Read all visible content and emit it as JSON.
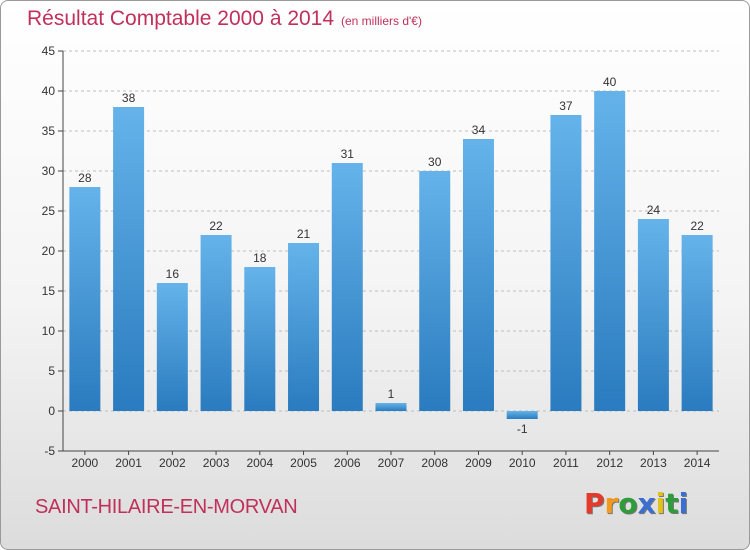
{
  "header": {
    "title": "Résultat Comptable 2000 à 2014",
    "subtitle": "(en milliers d'€)"
  },
  "footer": {
    "commune": "SAINT-HILAIRE-EN-MORVAN",
    "logo": "Proxiti",
    "logo_colors": [
      "#e23b2a",
      "#f29a1b",
      "#2e9c3a",
      "#3a6fd1",
      "#e2c21a",
      "#2e9c3a",
      "#3a6fd1"
    ]
  },
  "colors": {
    "bar_light": "#65b3ea",
    "bar_dark": "#2a7bbf",
    "title": "#c0305a",
    "grid": "#bdbdbd",
    "axis": "#444444"
  },
  "chart_data": {
    "type": "bar",
    "categories": [
      "2000",
      "2001",
      "2002",
      "2003",
      "2004",
      "2005",
      "2006",
      "2007",
      "2008",
      "2009",
      "2010",
      "2011",
      "2012",
      "2013",
      "2014"
    ],
    "values": [
      28,
      38,
      16,
      22,
      18,
      21,
      31,
      1,
      30,
      34,
      -1,
      37,
      40,
      24,
      22
    ],
    "value_labels": [
      "28",
      "38",
      "16",
      "22",
      "18",
      "21",
      "31",
      "1",
      "30",
      "34",
      "-1",
      "37",
      "40",
      "24",
      "22"
    ],
    "yticks": [
      "-5",
      "0",
      "5",
      "10",
      "15",
      "20",
      "25",
      "30",
      "35",
      "40",
      "45"
    ],
    "ylim": [
      -5,
      45
    ],
    "grid": "horizontal-dashed"
  }
}
